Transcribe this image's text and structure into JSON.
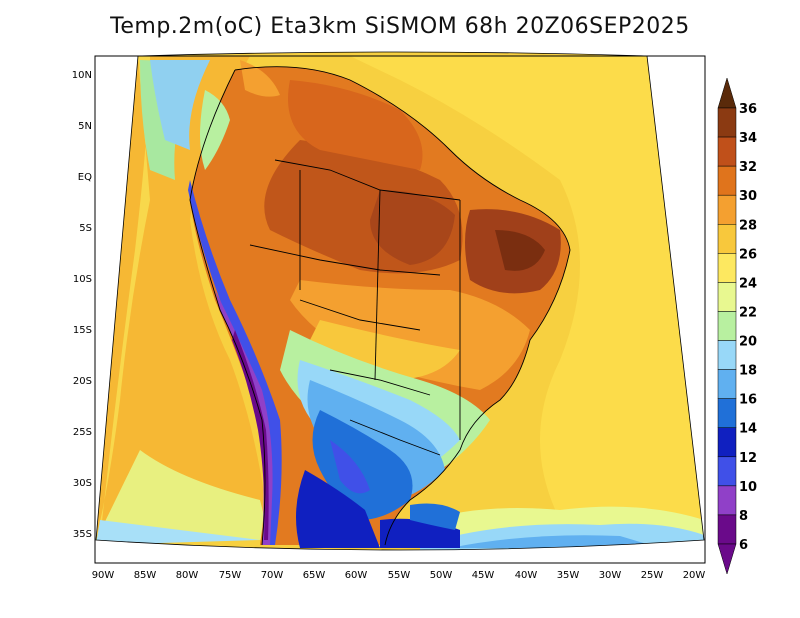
{
  "title": "Temp.2m(oC) Eta3km SiSMOM 68h 20Z06SEP2025",
  "map": {
    "lat_ticks": [
      "10N",
      "5N",
      "EQ",
      "5S",
      "10S",
      "15S",
      "20S",
      "25S",
      "30S",
      "35S"
    ],
    "lon_ticks": [
      "90W",
      "85W",
      "80W",
      "75W",
      "70W",
      "65W",
      "60W",
      "55W",
      "50W",
      "45W",
      "40W",
      "35W",
      "30W",
      "25W",
      "20W"
    ]
  },
  "colorbar": {
    "labels": [
      "36",
      "34",
      "32",
      "30",
      "28",
      "26",
      "24",
      "22",
      "20",
      "18",
      "16",
      "14",
      "12",
      "10",
      "8",
      "6"
    ],
    "colors": [
      "#5a2a0a",
      "#8b3a12",
      "#c0501a",
      "#e0741c",
      "#f4a030",
      "#f8c83c",
      "#fde860",
      "#e8f890",
      "#b8f0a0",
      "#98d8f8",
      "#60b0f0",
      "#2070d8",
      "#1020c0",
      "#4050e8",
      "#9040c8",
      "#6a0a8a"
    ]
  }
}
